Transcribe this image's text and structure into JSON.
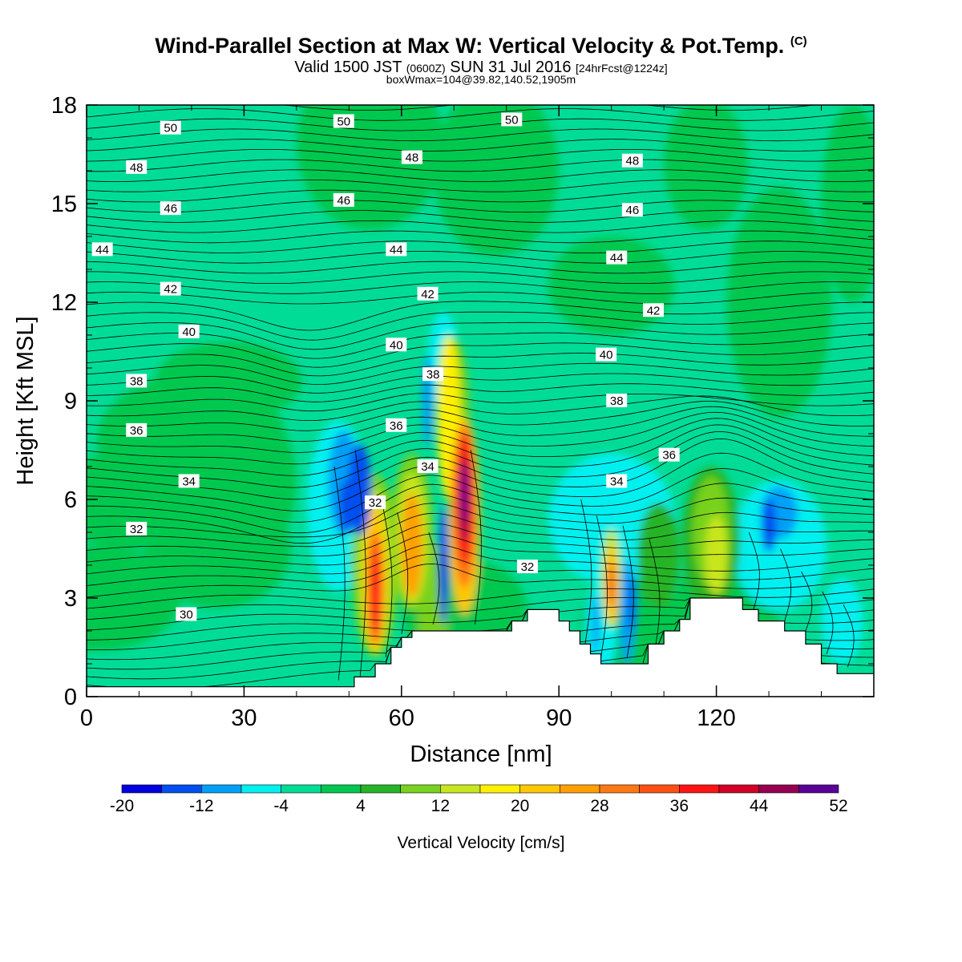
{
  "header": {
    "title": "Wind-Parallel Section at Max W: Vertical Velocity & Pot.Temp.",
    "title_mark": "(C)",
    "subtitle_a": "Valid 1500 JST",
    "subtitle_b": "(0600Z)",
    "subtitle_c": "SUN 31 Jul 2016",
    "subtitle_d": "[24hrFcst@1224z]",
    "note": "boxWmax=104@39.82,140.52,1905m"
  },
  "chart_data": {
    "type": "heatmap",
    "xlabel": "Distance [nm]",
    "ylabel": "Height [Kft MSL]",
    "xlim": [
      0,
      150
    ],
    "ylim": [
      0,
      18
    ],
    "x_ticks": [
      0,
      30,
      60,
      90,
      120
    ],
    "y_ticks": [
      0,
      3,
      6,
      9,
      12,
      15,
      18
    ],
    "colorbar": {
      "label": "Vertical Velocity [cm/s]",
      "tick_labels": [
        "-20",
        "-12",
        "-4",
        "4",
        "12",
        "20",
        "28",
        "36",
        "44",
        "52"
      ],
      "colors": [
        "#0000e0",
        "#0050f0",
        "#00a0f8",
        "#00f0f0",
        "#00dc96",
        "#00c850",
        "#28b428",
        "#78d21e",
        "#c8e61e",
        "#fff000",
        "#ffc800",
        "#ffa000",
        "#ff7814",
        "#ff5014",
        "#ff1414",
        "#d20028",
        "#960050",
        "#5a0096"
      ]
    },
    "terrain": [
      [
        0,
        0.3
      ],
      [
        51,
        0.3
      ],
      [
        51,
        0.6
      ],
      [
        55,
        0.6
      ],
      [
        55,
        1.0
      ],
      [
        58,
        1.0
      ],
      [
        58,
        1.5
      ],
      [
        60,
        1.5
      ],
      [
        60,
        1.8
      ],
      [
        62,
        1.8
      ],
      [
        62,
        2.0
      ],
      [
        81,
        2.0
      ],
      [
        81,
        2.3
      ],
      [
        84,
        2.3
      ],
      [
        84,
        2.65
      ],
      [
        90,
        2.65
      ],
      [
        90,
        2.3
      ],
      [
        92,
        2.3
      ],
      [
        92,
        2.0
      ],
      [
        94,
        2.0
      ],
      [
        94,
        1.6
      ],
      [
        96,
        1.6
      ],
      [
        96,
        1.3
      ],
      [
        98,
        1.3
      ],
      [
        98,
        1.0
      ],
      [
        107,
        1.0
      ],
      [
        107,
        1.6
      ],
      [
        110,
        1.6
      ],
      [
        110,
        2.0
      ],
      [
        113,
        2.0
      ],
      [
        113,
        2.35
      ],
      [
        115,
        2.35
      ],
      [
        115,
        3.0
      ],
      [
        125,
        3.0
      ],
      [
        125,
        2.65
      ],
      [
        128,
        2.65
      ],
      [
        128,
        2.3
      ],
      [
        133,
        2.3
      ],
      [
        133,
        2.0
      ],
      [
        137,
        2.0
      ],
      [
        137,
        1.6
      ],
      [
        140,
        1.6
      ],
      [
        140,
        1.0
      ],
      [
        143,
        1.0
      ],
      [
        143,
        0.7
      ],
      [
        150,
        0.7
      ]
    ],
    "theta_contour_labels": [
      {
        "text": "50",
        "x": 16,
        "y": 17.3
      },
      {
        "text": "50",
        "x": 49,
        "y": 17.5
      },
      {
        "text": "50",
        "x": 81,
        "y": 17.55
      },
      {
        "text": "48",
        "x": 9.5,
        "y": 16.1
      },
      {
        "text": "48",
        "x": 62,
        "y": 16.4
      },
      {
        "text": "48",
        "x": 104,
        "y": 16.3
      },
      {
        "text": "46",
        "x": 16,
        "y": 14.85
      },
      {
        "text": "46",
        "x": 49,
        "y": 15.1
      },
      {
        "text": "46",
        "x": 104,
        "y": 14.8
      },
      {
        "text": "44",
        "x": 3,
        "y": 13.6
      },
      {
        "text": "44",
        "x": 59,
        "y": 13.6
      },
      {
        "text": "44",
        "x": 101,
        "y": 13.35
      },
      {
        "text": "42",
        "x": 16,
        "y": 12.4
      },
      {
        "text": "42",
        "x": 65,
        "y": 12.25
      },
      {
        "text": "42",
        "x": 108,
        "y": 11.75
      },
      {
        "text": "40",
        "x": 19.5,
        "y": 11.1
      },
      {
        "text": "40",
        "x": 59,
        "y": 10.7
      },
      {
        "text": "40",
        "x": 99,
        "y": 10.4
      },
      {
        "text": "38",
        "x": 9.5,
        "y": 9.6
      },
      {
        "text": "38",
        "x": 66,
        "y": 9.8
      },
      {
        "text": "38",
        "x": 101,
        "y": 9.0
      },
      {
        "text": "36",
        "x": 9.5,
        "y": 8.1
      },
      {
        "text": "36",
        "x": 59,
        "y": 8.25
      },
      {
        "text": "36",
        "x": 111,
        "y": 7.35
      },
      {
        "text": "34",
        "x": 19.5,
        "y": 6.55
      },
      {
        "text": "34",
        "x": 65,
        "y": 7.0
      },
      {
        "text": "34",
        "x": 101,
        "y": 6.55
      },
      {
        "text": "32",
        "x": 9.5,
        "y": 5.1
      },
      {
        "text": "32",
        "x": 55,
        "y": 5.9
      },
      {
        "text": "32",
        "x": 84,
        "y": 3.95
      },
      {
        "text": "30",
        "x": 19,
        "y": 2.5
      }
    ]
  }
}
